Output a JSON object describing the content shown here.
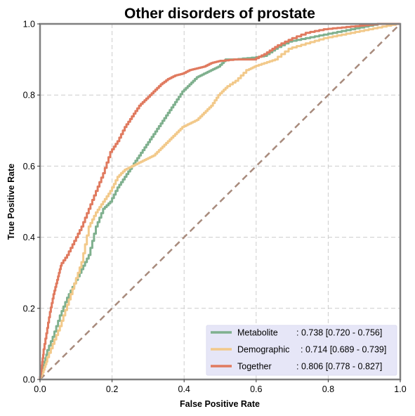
{
  "chart_data": {
    "type": "line",
    "title": "Other disorders of prostate",
    "xlabel": "False Positive Rate",
    "ylabel": "True Positive Rate",
    "xlim": [
      0,
      1
    ],
    "ylim": [
      0,
      1
    ],
    "xticks": [
      "0.0",
      "0.2",
      "0.4",
      "0.6",
      "0.8",
      "1.0"
    ],
    "yticks": [
      "0.0",
      "0.2",
      "0.4",
      "0.6",
      "0.8",
      "1.0"
    ],
    "grid": true,
    "legend_position": "lower-right",
    "series": [
      {
        "name": "Metabolite",
        "legend_label": "Metabolite",
        "legend_value": ": 0.738 [0.720 - 0.756]",
        "color": "#7fb08e",
        "points": [
          [
            0,
            0
          ],
          [
            0.01,
            0.03
          ],
          [
            0.02,
            0.07
          ],
          [
            0.04,
            0.12
          ],
          [
            0.06,
            0.18
          ],
          [
            0.08,
            0.23
          ],
          [
            0.1,
            0.27
          ],
          [
            0.12,
            0.31
          ],
          [
            0.14,
            0.35
          ],
          [
            0.16,
            0.43
          ],
          [
            0.18,
            0.48
          ],
          [
            0.2,
            0.5
          ],
          [
            0.22,
            0.54
          ],
          [
            0.24,
            0.57
          ],
          [
            0.26,
            0.6
          ],
          [
            0.28,
            0.63
          ],
          [
            0.3,
            0.66
          ],
          [
            0.32,
            0.69
          ],
          [
            0.34,
            0.72
          ],
          [
            0.36,
            0.75
          ],
          [
            0.38,
            0.78
          ],
          [
            0.4,
            0.81
          ],
          [
            0.42,
            0.83
          ],
          [
            0.44,
            0.85
          ],
          [
            0.46,
            0.86
          ],
          [
            0.48,
            0.87
          ],
          [
            0.5,
            0.88
          ],
          [
            0.52,
            0.9
          ],
          [
            0.55,
            0.9
          ],
          [
            0.6,
            0.905
          ],
          [
            0.63,
            0.91
          ],
          [
            0.66,
            0.93
          ],
          [
            0.7,
            0.95
          ],
          [
            0.75,
            0.96
          ],
          [
            0.8,
            0.97
          ],
          [
            0.85,
            0.98
          ],
          [
            0.9,
            0.99
          ],
          [
            0.95,
            1.0
          ],
          [
            1.0,
            1.0
          ]
        ]
      },
      {
        "name": "Demographic",
        "legend_label": "Demographic",
        "legend_value": ": 0.714 [0.689 - 0.739]",
        "color": "#f2c98a",
        "points": [
          [
            0,
            0
          ],
          [
            0.01,
            0.02
          ],
          [
            0.02,
            0.05
          ],
          [
            0.04,
            0.1
          ],
          [
            0.06,
            0.15
          ],
          [
            0.08,
            0.21
          ],
          [
            0.1,
            0.27
          ],
          [
            0.12,
            0.33
          ],
          [
            0.14,
            0.43
          ],
          [
            0.16,
            0.47
          ],
          [
            0.18,
            0.5
          ],
          [
            0.2,
            0.53
          ],
          [
            0.22,
            0.57
          ],
          [
            0.24,
            0.59
          ],
          [
            0.26,
            0.6
          ],
          [
            0.28,
            0.61
          ],
          [
            0.3,
            0.62
          ],
          [
            0.32,
            0.63
          ],
          [
            0.34,
            0.65
          ],
          [
            0.36,
            0.67
          ],
          [
            0.38,
            0.69
          ],
          [
            0.4,
            0.71
          ],
          [
            0.42,
            0.72
          ],
          [
            0.44,
            0.73
          ],
          [
            0.46,
            0.75
          ],
          [
            0.48,
            0.77
          ],
          [
            0.5,
            0.8
          ],
          [
            0.52,
            0.82
          ],
          [
            0.55,
            0.84
          ],
          [
            0.58,
            0.87
          ],
          [
            0.6,
            0.88
          ],
          [
            0.63,
            0.89
          ],
          [
            0.66,
            0.9
          ],
          [
            0.7,
            0.93
          ],
          [
            0.75,
            0.945
          ],
          [
            0.8,
            0.96
          ],
          [
            0.85,
            0.97
          ],
          [
            0.9,
            0.98
          ],
          [
            0.95,
            0.99
          ],
          [
            1.0,
            1.0
          ]
        ]
      },
      {
        "name": "Together",
        "legend_label": "Together",
        "legend_value": ": 0.806 [0.778 - 0.827]",
        "color": "#e07a5f",
        "points": [
          [
            0,
            0
          ],
          [
            0.005,
            0.03
          ],
          [
            0.01,
            0.07
          ],
          [
            0.02,
            0.13
          ],
          [
            0.03,
            0.19
          ],
          [
            0.04,
            0.24
          ],
          [
            0.05,
            0.28
          ],
          [
            0.06,
            0.32
          ],
          [
            0.08,
            0.35
          ],
          [
            0.1,
            0.39
          ],
          [
            0.12,
            0.43
          ],
          [
            0.14,
            0.48
          ],
          [
            0.16,
            0.53
          ],
          [
            0.18,
            0.58
          ],
          [
            0.2,
            0.64
          ],
          [
            0.22,
            0.67
          ],
          [
            0.24,
            0.71
          ],
          [
            0.26,
            0.74
          ],
          [
            0.28,
            0.77
          ],
          [
            0.3,
            0.79
          ],
          [
            0.32,
            0.81
          ],
          [
            0.34,
            0.83
          ],
          [
            0.36,
            0.845
          ],
          [
            0.38,
            0.855
          ],
          [
            0.4,
            0.86
          ],
          [
            0.42,
            0.87
          ],
          [
            0.44,
            0.875
          ],
          [
            0.46,
            0.88
          ],
          [
            0.48,
            0.89
          ],
          [
            0.5,
            0.895
          ],
          [
            0.55,
            0.9
          ],
          [
            0.6,
            0.9
          ],
          [
            0.63,
            0.915
          ],
          [
            0.66,
            0.935
          ],
          [
            0.7,
            0.955
          ],
          [
            0.75,
            0.975
          ],
          [
            0.8,
            0.985
          ],
          [
            0.85,
            0.99
          ],
          [
            0.9,
            0.995
          ],
          [
            0.95,
            1.0
          ],
          [
            1.0,
            1.0
          ]
        ]
      }
    ],
    "reference_line": {
      "points": [
        [
          0,
          0
        ],
        [
          1,
          1
        ]
      ],
      "color": "#a88b7d",
      "style": "dashed"
    }
  }
}
